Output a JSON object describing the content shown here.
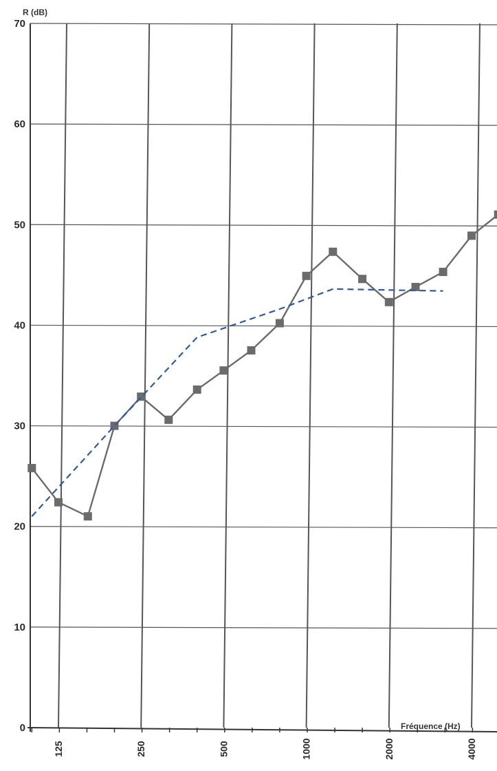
{
  "chart_data": {
    "type": "line",
    "ylabel": "R (dB)",
    "xlabel": "Fréquence (Hz)",
    "ylim": [
      0,
      70
    ],
    "yticks": [
      0,
      10,
      20,
      30,
      40,
      50,
      60,
      70
    ],
    "xscale": "log",
    "xticks": [
      125,
      250,
      500,
      1000,
      2000,
      4000
    ],
    "xtick_labels": [
      "125",
      "250",
      "500",
      "1000",
      "2000",
      "4000"
    ],
    "grid": true,
    "series": [
      {
        "style": "solid-square-markers",
        "color": "#6b6b6b",
        "x": [
          100,
          125,
          160,
          200,
          250,
          315,
          400,
          500,
          630,
          800,
          1000,
          1250,
          1600,
          2000,
          2500,
          3150,
          4000,
          5000
        ],
        "values": [
          25.8,
          22.4,
          21.0,
          30.0,
          32.9,
          30.6,
          33.6,
          35.5,
          37.5,
          40.2,
          44.9,
          47.3,
          44.6,
          42.3,
          43.8,
          45.3,
          48.9,
          51.0
        ]
      },
      {
        "style": "dashed",
        "color": "#2a5aa8",
        "x": [
          100,
          200,
          400,
          800,
          1250,
          3150
        ],
        "values": [
          21.0,
          30.0,
          38.8,
          41.6,
          43.6,
          43.4
        ]
      }
    ]
  }
}
